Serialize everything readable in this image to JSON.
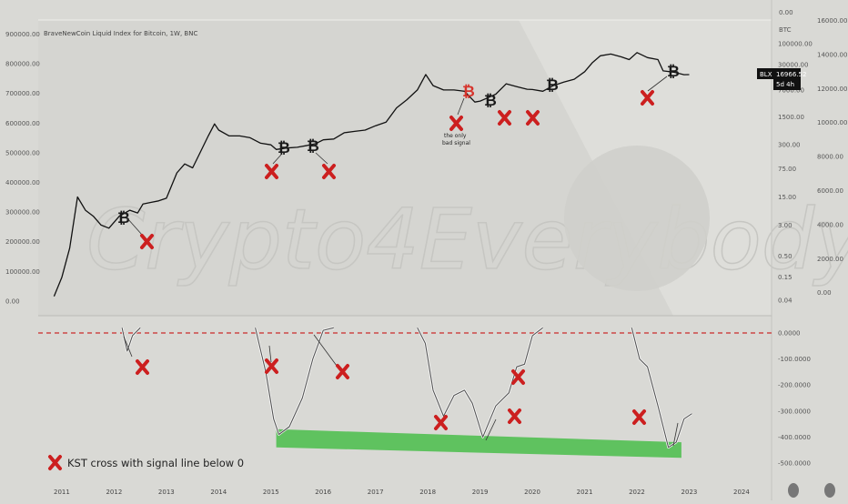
{
  "chart_data": [
    {
      "type": "line",
      "title": "BraveNewCoin Liquid Index for Bitcoin, 1W, BNC",
      "watermark": "Crypto4Everybody",
      "symbol": "BLX",
      "last_price": "16966.52",
      "time_to_close": "5d 4h",
      "y_axis_right_title": "BTC",
      "x_ticks": [
        "2011",
        "2012",
        "2013",
        "2014",
        "2015",
        "2016",
        "2017",
        "2018",
        "2019",
        "2020",
        "2021",
        "2022",
        "2023",
        "2024"
      ],
      "left_y_ticks": [
        "900000.00",
        "800000.00",
        "700000.00",
        "600000.00",
        "500000.00",
        "400000.00",
        "300000.00",
        "200000.00",
        "100000.00",
        "0.00"
      ],
      "log_y_ticks": [
        "100000.00",
        "30000.00",
        "7000.00",
        "1500.00",
        "300.00",
        "75.00",
        "15.00",
        "3.00",
        "0.50",
        "0.15",
        "0.04"
      ],
      "top_tick": "0.00",
      "far_right_ticks": [
        "16000.00",
        "14000.00",
        "12000.00",
        "10000.00",
        "8000.00",
        "6000.00",
        "4000.00",
        "2000.00",
        "0.00"
      ],
      "series": [
        {
          "x": [
            2010.85,
            2011.0,
            2011.15,
            2011.3,
            2011.45,
            2011.6,
            2011.75,
            2011.9,
            2012.1,
            2012.3,
            2012.45,
            2012.55,
            2012.7,
            2012.85,
            2013.0,
            2013.2,
            2013.35,
            2013.5,
            2013.65,
            2013.8,
            2013.92,
            2014.0,
            2014.2,
            2014.4,
            2014.6,
            2014.8,
            2015.0,
            2015.1,
            2015.3,
            2015.5,
            2015.7,
            2015.85,
            2016.0,
            2016.2,
            2016.4,
            2016.6,
            2016.8,
            2017.0,
            2017.2,
            2017.4,
            2017.6,
            2017.8,
            2017.96,
            2018.1,
            2018.3,
            2018.5,
            2018.7,
            2018.9,
            2019.0,
            2019.1,
            2019.3,
            2019.5,
            2019.7,
            2019.9,
            2020.0,
            2020.2,
            2020.4,
            2020.6,
            2020.8,
            2021.0,
            2021.15,
            2021.3,
            2021.5,
            2021.7,
            2021.85,
            2022.0,
            2022.2,
            2022.4,
            2022.5,
            2022.7,
            2022.9,
            2023.0
          ],
          "y": [
            0.05,
            0.15,
            0.8,
            15,
            7,
            5,
            3,
            2.5,
            5,
            7,
            6,
            10,
            11,
            12,
            14,
            60,
            100,
            80,
            200,
            500,
            1000,
            700,
            500,
            500,
            450,
            330,
            300,
            230,
            250,
            260,
            290,
            320,
            400,
            420,
            600,
            650,
            700,
            900,
            1100,
            2500,
            4000,
            7000,
            17000,
            9000,
            7000,
            7000,
            6500,
            3500,
            3700,
            4200,
            5500,
            10000,
            8500,
            7300,
            7200,
            6500,
            9000,
            11000,
            13000,
            20000,
            34000,
            50000,
            55000,
            47000,
            40000,
            60000,
            45000,
            40000,
            21000,
            19500,
            16800,
            16966.52
          ]
        }
      ],
      "markers": [
        {
          "label": "the only bad signal",
          "x": 2018.3
        }
      ]
    },
    {
      "type": "line",
      "subtitle": "KST",
      "right_ticks": [
        "0.0000",
        "-100.0000",
        "-200.0000",
        "-300.0000",
        "-400.0000",
        "-500.0000"
      ],
      "signal_line": 0,
      "legend": "KST cross with signal line below 0",
      "support_band": {
        "x": [
          2015.1,
          2022.85
        ],
        "y_start": [
          -370,
          -420
        ],
        "y_end": [
          -440,
          -480
        ]
      },
      "series": [
        {
          "name": "KST",
          "x": [
            2012.15,
            2012.25,
            2012.35,
            2012.5,
            2014.7,
            2014.9,
            2015.05,
            2015.15,
            2015.35,
            2015.6,
            2015.8,
            2016.0,
            2016.2,
            2017.8,
            2017.95,
            2018.1,
            2018.3,
            2018.5,
            2018.7,
            2018.85,
            2019.05,
            2019.3,
            2019.55,
            2019.7,
            2019.85,
            2020.0,
            2020.2,
            2021.9,
            2022.05,
            2022.2,
            2022.4,
            2022.6,
            2022.75,
            2022.9,
            2023.05
          ],
          "y": [
            20,
            -70,
            -10,
            20,
            20,
            -150,
            -330,
            -390,
            -360,
            -250,
            -100,
            10,
            20,
            20,
            -40,
            -220,
            -320,
            -240,
            -220,
            -270,
            -400,
            -280,
            -230,
            -130,
            -120,
            -10,
            20,
            20,
            -100,
            -130,
            -280,
            -440,
            -420,
            -330,
            -310
          ]
        }
      ]
    }
  ],
  "legend_icon": "x-mark-icon",
  "colors": {
    "cross_mark": "#cc1f1f",
    "support_band": "#5fc25f",
    "signal_line": "#cc2b2b",
    "price_line": "#111111",
    "background": "#d9d9d5"
  }
}
